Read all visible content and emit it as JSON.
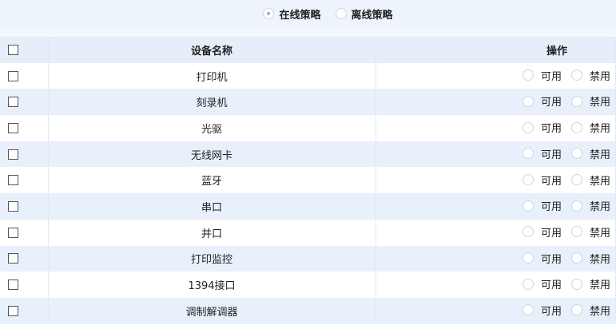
{
  "policy": {
    "options": [
      {
        "label": "在线策略",
        "selected": true
      },
      {
        "label": "离线策略",
        "selected": false
      }
    ]
  },
  "table": {
    "headers": {
      "name": "设备名称",
      "ops": "操作"
    },
    "enable_label": "可用",
    "disable_label": "禁用",
    "rows": [
      "打印机",
      "刻录机",
      "光驱",
      "无线网卡",
      "蓝牙",
      "串口",
      "并口",
      "打印监控",
      "1394接口",
      "调制解调器"
    ]
  }
}
